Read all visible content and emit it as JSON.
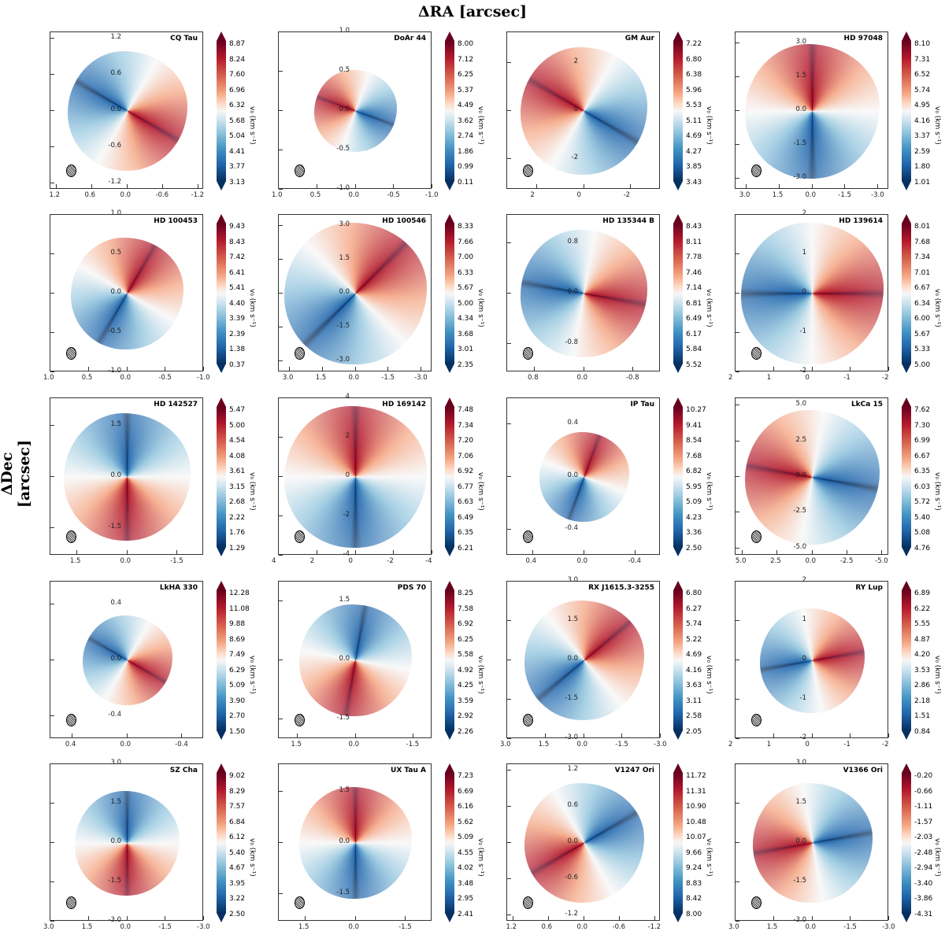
{
  "figure": {
    "xlabel": "ΔRA [arcsec]",
    "ylabel": "ΔDec [arcsec]",
    "colorbar_label": "v₀ (km s⁻¹)",
    "colormap": "RdBu_r"
  },
  "chart_data": [
    {
      "type": "heatmap",
      "title": "CQ Tau",
      "xticks": [
        "1.2",
        "0.6",
        "0.0",
        "-0.6",
        "-1.2"
      ],
      "yticks": [
        "1.2",
        "0.6",
        "0.0",
        "-0.6",
        "-1.2"
      ],
      "lim": 1.3,
      "cbar_ticks": [
        "8.87",
        "8.24",
        "7.60",
        "6.96",
        "6.32",
        "5.68",
        "5.04",
        "4.41",
        "3.77",
        "3.13"
      ]
    },
    {
      "type": "heatmap",
      "title": "DoAr 44",
      "xticks": [
        "1.0",
        "0.5",
        "0.0",
        "-0.5",
        "-1.0"
      ],
      "yticks": [
        "1.0",
        "0.5",
        "0.0",
        "-0.5",
        "-1.0"
      ],
      "lim": 1.0,
      "cbar_ticks": [
        "8.00",
        "7.12",
        "6.25",
        "5.37",
        "4.49",
        "3.62",
        "2.74",
        "1.86",
        "0.99",
        "0.11"
      ]
    },
    {
      "type": "heatmap",
      "title": "GM Aur",
      "xticks": [
        "2",
        "0",
        "-2"
      ],
      "yticks": [
        "2",
        "0",
        "-2"
      ],
      "lim": 3.3,
      "cbar_ticks": [
        "7.22",
        "6.80",
        "6.38",
        "5.96",
        "5.53",
        "5.11",
        "4.69",
        "4.27",
        "3.85",
        "3.43"
      ]
    },
    {
      "type": "heatmap",
      "title": "HD 97048",
      "xticks": [
        "3.0",
        "1.5",
        "0.0",
        "-1.5",
        "-3.0"
      ],
      "yticks": [
        "3.0",
        "1.5",
        "0.0",
        "-1.5",
        "-3.0"
      ],
      "lim": 3.5,
      "cbar_ticks": [
        "8.10",
        "7.31",
        "6.52",
        "5.74",
        "4.95",
        "4.16",
        "3.37",
        "2.59",
        "1.80",
        "1.01"
      ]
    },
    {
      "type": "heatmap",
      "title": "HD 100453",
      "xticks": [
        "1.0",
        "0.5",
        "0.0",
        "-0.5",
        "-1.0"
      ],
      "yticks": [
        "1.0",
        "0.5",
        "0.0",
        "-0.5",
        "-1.0"
      ],
      "lim": 1.0,
      "cbar_ticks": [
        "9.43",
        "8.43",
        "7.42",
        "6.41",
        "5.41",
        "4.40",
        "3.39",
        "2.39",
        "1.38",
        "0.37"
      ]
    },
    {
      "type": "heatmap",
      "title": "HD 100546",
      "xticks": [
        "3.0",
        "1.5",
        "0.0",
        "-1.5",
        "-3.0"
      ],
      "yticks": [
        "3.0",
        "1.5",
        "0.0",
        "-1.5",
        "-3.0"
      ],
      "lim": 3.5,
      "cbar_ticks": [
        "8.33",
        "7.66",
        "7.00",
        "6.33",
        "5.67",
        "5.00",
        "4.34",
        "3.68",
        "3.01",
        "2.35"
      ]
    },
    {
      "type": "heatmap",
      "title": "HD 135344 B",
      "xticks": [
        "0.8",
        "0.0",
        "-0.8"
      ],
      "yticks": [
        "0.8",
        "0.0",
        "-0.8"
      ],
      "lim": 1.25,
      "cbar_ticks": [
        "8.43",
        "8.11",
        "7.78",
        "7.46",
        "7.14",
        "6.81",
        "6.49",
        "6.17",
        "5.84",
        "5.52"
      ]
    },
    {
      "type": "heatmap",
      "title": "HD 139614",
      "xticks": [
        "2",
        "1",
        "0",
        "-1",
        "-2"
      ],
      "yticks": [
        "2",
        "1",
        "0",
        "-1",
        "-2"
      ],
      "lim": 2.0,
      "cbar_ticks": [
        "8.01",
        "7.68",
        "7.34",
        "7.01",
        "6.67",
        "6.34",
        "6.00",
        "5.67",
        "5.33",
        "5.00"
      ]
    },
    {
      "type": "heatmap",
      "title": "HD 142527",
      "xticks": [
        "1.5",
        "0.0",
        "-1.5"
      ],
      "yticks": [
        "1.5",
        "0.0",
        "-1.5"
      ],
      "lim": 2.3,
      "cbar_ticks": [
        "5.47",
        "5.00",
        "4.54",
        "4.08",
        "3.61",
        "3.15",
        "2.68",
        "2.22",
        "1.76",
        "1.29"
      ]
    },
    {
      "type": "heatmap",
      "title": "HD 169142",
      "xticks": [
        "4",
        "2",
        "0",
        "-2",
        "-4"
      ],
      "yticks": [
        "4",
        "2",
        "0",
        "-2",
        "-4"
      ],
      "lim": 4.0,
      "cbar_ticks": [
        "7.48",
        "7.34",
        "7.20",
        "7.06",
        "6.92",
        "6.77",
        "6.63",
        "6.49",
        "6.35",
        "6.21"
      ]
    },
    {
      "type": "heatmap",
      "title": "IP Tau",
      "xticks": [
        "0.4",
        "0.0",
        "-0.4"
      ],
      "yticks": [
        "0.4",
        "0.0",
        "-0.4"
      ],
      "lim": 0.6,
      "cbar_ticks": [
        "10.27",
        "9.41",
        "8.54",
        "7.68",
        "6.82",
        "5.95",
        "5.09",
        "4.23",
        "3.36",
        "2.50"
      ]
    },
    {
      "type": "heatmap",
      "title": "LkCa 15",
      "xticks": [
        "5.0",
        "2.5",
        "0.0",
        "-2.5",
        "-5.0"
      ],
      "yticks": [
        "5.0",
        "2.5",
        "0.0",
        "-2.5",
        "-5.0"
      ],
      "lim": 5.5,
      "cbar_ticks": [
        "7.62",
        "7.30",
        "6.99",
        "6.67",
        "6.35",
        "6.03",
        "5.72",
        "5.40",
        "5.08",
        "4.76"
      ]
    },
    {
      "type": "heatmap",
      "title": "LkHA 330",
      "xticks": [
        "0.4",
        "0.0",
        "-0.4"
      ],
      "yticks": [
        "0.4",
        "0.0",
        "-0.4"
      ],
      "lim": 0.56,
      "cbar_ticks": [
        "12.28",
        "11.08",
        "9.88",
        "8.69",
        "7.49",
        "6.29",
        "5.09",
        "3.90",
        "2.70",
        "1.50"
      ]
    },
    {
      "type": "heatmap",
      "title": "PDS 70",
      "xticks": [
        "1.5",
        "0.0",
        "-1.5"
      ],
      "yticks": [
        "1.5",
        "0.0",
        "-1.5"
      ],
      "lim": 2.0,
      "cbar_ticks": [
        "8.25",
        "7.58",
        "6.92",
        "6.25",
        "5.58",
        "4.92",
        "4.25",
        "3.59",
        "2.92",
        "2.26"
      ]
    },
    {
      "type": "heatmap",
      "title": "RX J1615.3-3255",
      "xticks": [
        "3.0",
        "1.5",
        "0.0",
        "-1.5",
        "-3.0"
      ],
      "yticks": [
        "3.0",
        "1.5",
        "0.0",
        "-1.5",
        "-3.0"
      ],
      "lim": 3.0,
      "cbar_ticks": [
        "6.80",
        "6.27",
        "5.74",
        "5.22",
        "4.69",
        "4.16",
        "3.63",
        "3.11",
        "2.58",
        "2.05"
      ]
    },
    {
      "type": "heatmap",
      "title": "RY Lup",
      "xticks": [
        "2",
        "1",
        "0",
        "-1",
        "-2"
      ],
      "yticks": [
        "2",
        "1",
        "0",
        "-1",
        "-2"
      ],
      "lim": 2.0,
      "cbar_ticks": [
        "6.89",
        "6.22",
        "5.55",
        "4.87",
        "4.20",
        "3.53",
        "2.86",
        "2.18",
        "1.51",
        "0.84"
      ]
    },
    {
      "type": "heatmap",
      "title": "SZ Cha",
      "xticks": [
        "3.0",
        "1.5",
        "0.0",
        "-1.5",
        "-3.0"
      ],
      "yticks": [
        "3.0",
        "1.5",
        "0.0",
        "-1.5",
        "-3.0"
      ],
      "lim": 3.0,
      "cbar_ticks": [
        "9.02",
        "8.29",
        "7.57",
        "6.84",
        "6.12",
        "5.40",
        "4.67",
        "3.95",
        "3.22",
        "2.50"
      ]
    },
    {
      "type": "heatmap",
      "title": "UX Tau A",
      "xticks": [
        "1.5",
        "0.0",
        "-1.5"
      ],
      "yticks": [
        "1.5",
        "0.0",
        "-1.5"
      ],
      "lim": 2.3,
      "cbar_ticks": [
        "7.23",
        "6.69",
        "6.16",
        "5.62",
        "5.09",
        "4.55",
        "4.02",
        "3.48",
        "2.95",
        "2.41"
      ]
    },
    {
      "type": "heatmap",
      "title": "V1247 Ori",
      "xticks": [
        "1.2",
        "0.6",
        "0.0",
        "-0.6",
        "-1.2"
      ],
      "yticks": [
        "1.2",
        "0.6",
        "0.0",
        "-0.6",
        "-1.2"
      ],
      "lim": 1.3,
      "cbar_ticks": [
        "11.72",
        "11.31",
        "10.90",
        "10.48",
        "10.07",
        "9.66",
        "9.24",
        "8.83",
        "8.42",
        "8.00"
      ]
    },
    {
      "type": "heatmap",
      "title": "V1366 Ori",
      "xticks": [
        "3.0",
        "1.5",
        "0.0",
        "-1.5",
        "-3.0"
      ],
      "yticks": [
        "3.0",
        "1.5",
        "0.0",
        "-1.5",
        "-3.0"
      ],
      "lim": 3.0,
      "cbar_ticks": [
        "-0.20",
        "-0.66",
        "-1.11",
        "-1.57",
        "-2.03",
        "-2.48",
        "-2.94",
        "-3.40",
        "-3.86",
        "-4.31"
      ]
    }
  ]
}
